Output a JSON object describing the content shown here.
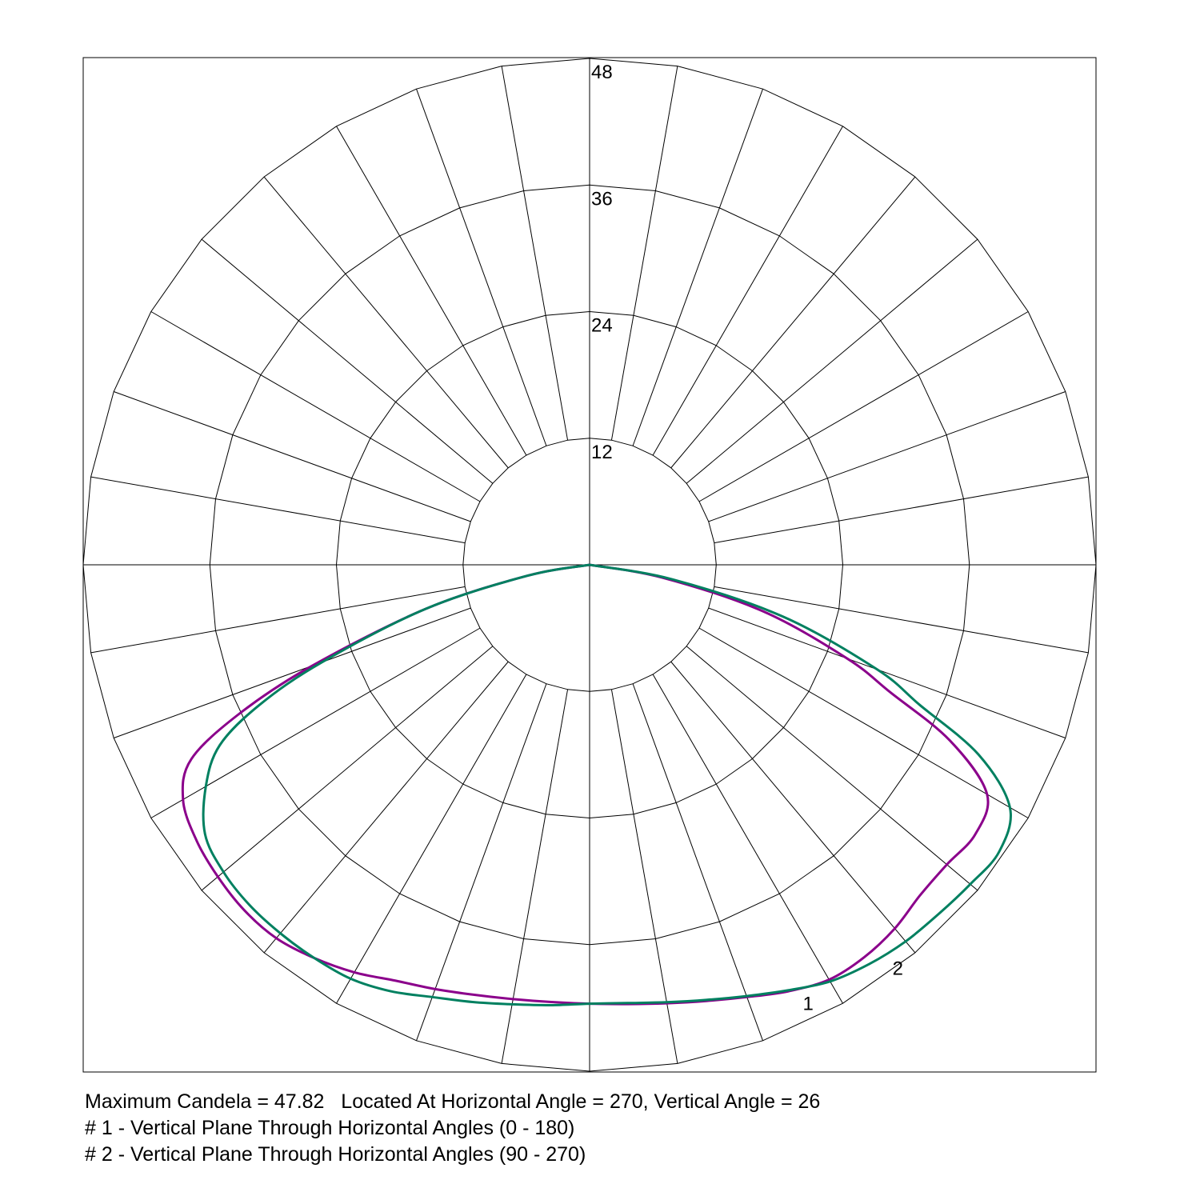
{
  "chart_data": {
    "type": "polar",
    "title": "",
    "radial_ticks": [
      "12",
      "24",
      "36",
      "48"
    ],
    "radial_max": 48,
    "angle_step_deg": 10,
    "grid": true,
    "colors": {
      "grid": "#000000",
      "series1": "#8b008b",
      "series2": "#008060"
    },
    "angle_reference": "vertical angle 0 = nadir (straight down), 90 = horizontal",
    "series": [
      {
        "name": "1",
        "label": "1",
        "color": "#8b008b",
        "points": [
          [
            -90,
            0
          ],
          [
            -80,
            6
          ],
          [
            -75,
            16
          ],
          [
            -70,
            28
          ],
          [
            -67,
            36
          ],
          [
            -64,
            42
          ],
          [
            -60,
            44.5
          ],
          [
            -55,
            45.5
          ],
          [
            -50,
            46
          ],
          [
            -45,
            46.3
          ],
          [
            -40,
            46.2
          ],
          [
            -35,
            45.5
          ],
          [
            -30,
            44.6
          ],
          [
            -25,
            43.5
          ],
          [
            -20,
            42.8
          ],
          [
            -15,
            42.2
          ],
          [
            -10,
            41.8
          ],
          [
            -5,
            41.6
          ],
          [
            0,
            41.6
          ],
          [
            5,
            41.8
          ],
          [
            10,
            42.2
          ],
          [
            15,
            42.8
          ],
          [
            20,
            43.6
          ],
          [
            25,
            44.6
          ],
          [
            30,
            45.4
          ],
          [
            35,
            45.4
          ],
          [
            40,
            45.0
          ],
          [
            45,
            44.3
          ],
          [
            50,
            44.2
          ],
          [
            55,
            44.6
          ],
          [
            60,
            43.5
          ],
          [
            64,
            38
          ],
          [
            67,
            31
          ],
          [
            70,
            26
          ],
          [
            75,
            17
          ],
          [
            80,
            7
          ],
          [
            90,
            0
          ]
        ]
      },
      {
        "name": "2",
        "label": "2",
        "color": "#008060",
        "points": [
          [
            -90,
            0
          ],
          [
            -80,
            6
          ],
          [
            -75,
            16
          ],
          [
            -70,
            27
          ],
          [
            -67,
            34
          ],
          [
            -64,
            39
          ],
          [
            -60,
            42
          ],
          [
            -55,
            44.5
          ],
          [
            -50,
            45.3
          ],
          [
            -45,
            45.6
          ],
          [
            -40,
            45.6
          ],
          [
            -35,
            45.5
          ],
          [
            -30,
            45.3
          ],
          [
            -25,
            44.6
          ],
          [
            -20,
            43.6
          ],
          [
            -15,
            42.9
          ],
          [
            -10,
            42.3
          ],
          [
            -5,
            41.9
          ],
          [
            0,
            41.6
          ],
          [
            5,
            41.7
          ],
          [
            10,
            42.1
          ],
          [
            15,
            42.7
          ],
          [
            20,
            43.5
          ],
          [
            25,
            44.5
          ],
          [
            30,
            45.6
          ],
          [
            35,
            46.2
          ],
          [
            40,
            46.6
          ],
          [
            45,
            46.8
          ],
          [
            50,
            47.1
          ],
          [
            55,
            47.4
          ],
          [
            60,
            46.0
          ],
          [
            64,
            41
          ],
          [
            67,
            34
          ],
          [
            70,
            29
          ],
          [
            75,
            19
          ],
          [
            80,
            8
          ],
          [
            90,
            0
          ]
        ]
      }
    ]
  },
  "footer": {
    "line1": "Maximum Candela = 47.82   Located At Horizontal Angle = 270, Vertical Angle = 26",
    "line2": "# 1 - Vertical Plane Through Horizontal Angles (0 - 180)",
    "line3": "# 2 - Vertical Plane Through Horizontal Angles (90 - 270)"
  }
}
